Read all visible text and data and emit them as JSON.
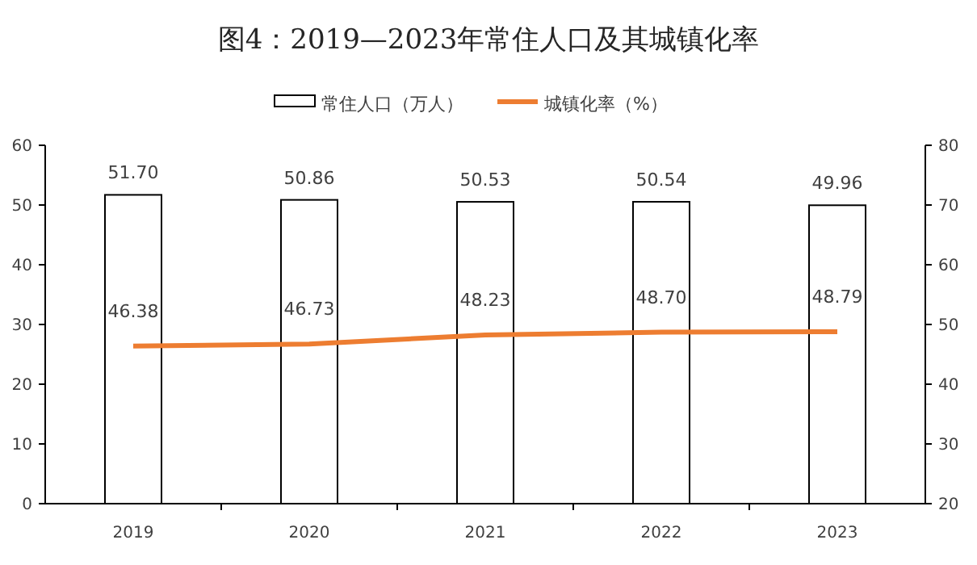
{
  "chart_data": {
    "type": "bar",
    "title": "图4：2019—2023年常住人口及其城镇化率",
    "categories": [
      "2019",
      "2020",
      "2021",
      "2022",
      "2023"
    ],
    "series": [
      {
        "name": "常住人口（万人）",
        "color": "#ffffff",
        "values": [
          51.7,
          50.86,
          50.53,
          50.54,
          49.96
        ],
        "value_labels": [
          "51.70",
          "50.86",
          "50.53",
          "50.54",
          "49.96"
        ]
      },
      {
        "name": "城镇化率（%）",
        "type": "line",
        "axis": "y2",
        "color": "#ed7d31",
        "values": [
          46.38,
          46.73,
          48.23,
          48.7,
          48.79
        ],
        "value_labels": [
          "46.38",
          "46.73",
          "48.23",
          "48.70",
          "48.79"
        ]
      }
    ],
    "ylim": [
      0,
      60
    ],
    "yticks": [
      0,
      10,
      20,
      30,
      40,
      50,
      60
    ],
    "y2lim": [
      20,
      80
    ],
    "y2ticks": [
      20,
      30,
      40,
      50,
      60,
      70,
      80
    ],
    "legend": "top",
    "grid": false
  }
}
